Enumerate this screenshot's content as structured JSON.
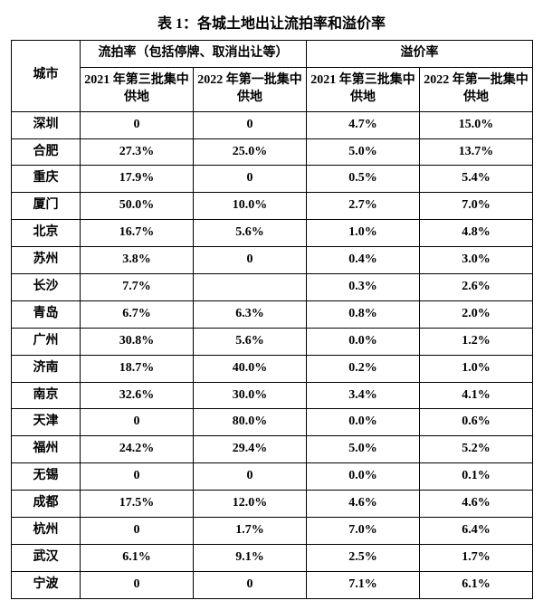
{
  "title": "表 1：各城土地出让流拍率和溢价率",
  "header": {
    "city": "城市",
    "group1": "流拍率（包括停牌、取消出让等）",
    "group2": "溢价率",
    "sub1": "2021 年第三批集中供地",
    "sub2": "2022 年第一批集中供地",
    "sub3": "2021 年第三批集中供地",
    "sub4": "2022 年第一批集中供地"
  },
  "rows": [
    {
      "city": "深圳",
      "a": "0",
      "b": "0",
      "c": "4.7%",
      "d": "15.0%"
    },
    {
      "city": "合肥",
      "a": "27.3%",
      "b": "25.0%",
      "c": "5.0%",
      "d": "13.7%"
    },
    {
      "city": "重庆",
      "a": "17.9%",
      "b": "0",
      "c": "0.5%",
      "d": "5.4%"
    },
    {
      "city": "厦门",
      "a": "50.0%",
      "b": "10.0%",
      "c": "2.7%",
      "d": "7.0%"
    },
    {
      "city": "北京",
      "a": "16.7%",
      "b": "5.6%",
      "c": "1.0%",
      "d": "4.8%"
    },
    {
      "city": "苏州",
      "a": "3.8%",
      "b": "0",
      "c": "0.4%",
      "d": "3.0%"
    },
    {
      "city": "长沙",
      "a": "7.7%",
      "b": "",
      "c": "0.3%",
      "d": "2.6%"
    },
    {
      "city": "青岛",
      "a": "6.7%",
      "b": "6.3%",
      "c": "0.8%",
      "d": "2.0%"
    },
    {
      "city": "广州",
      "a": "30.8%",
      "b": "5.6%",
      "c": "0.0%",
      "d": "1.2%"
    },
    {
      "city": "济南",
      "a": "18.7%",
      "b": "40.0%",
      "c": "0.2%",
      "d": "1.0%"
    },
    {
      "city": "南京",
      "a": "32.6%",
      "b": "30.0%",
      "c": "3.4%",
      "d": "4.1%"
    },
    {
      "city": "天津",
      "a": "0",
      "b": "80.0%",
      "c": "0.0%",
      "d": "0.6%"
    },
    {
      "city": "福州",
      "a": "24.2%",
      "b": "29.4%",
      "c": "5.0%",
      "d": "5.2%"
    },
    {
      "city": "无锡",
      "a": "0",
      "b": "0",
      "c": "0.0%",
      "d": "0.1%"
    },
    {
      "city": "成都",
      "a": "17.5%",
      "b": "12.0%",
      "c": "4.6%",
      "d": "4.6%"
    },
    {
      "city": "杭州",
      "a": "0",
      "b": "1.7%",
      "c": "7.0%",
      "d": "6.4%"
    },
    {
      "city": "武汉",
      "a": "6.1%",
      "b": "9.1%",
      "c": "2.5%",
      "d": "1.7%"
    },
    {
      "city": "宁波",
      "a": "0",
      "b": "0",
      "c": "7.1%",
      "d": "6.1%"
    }
  ]
}
